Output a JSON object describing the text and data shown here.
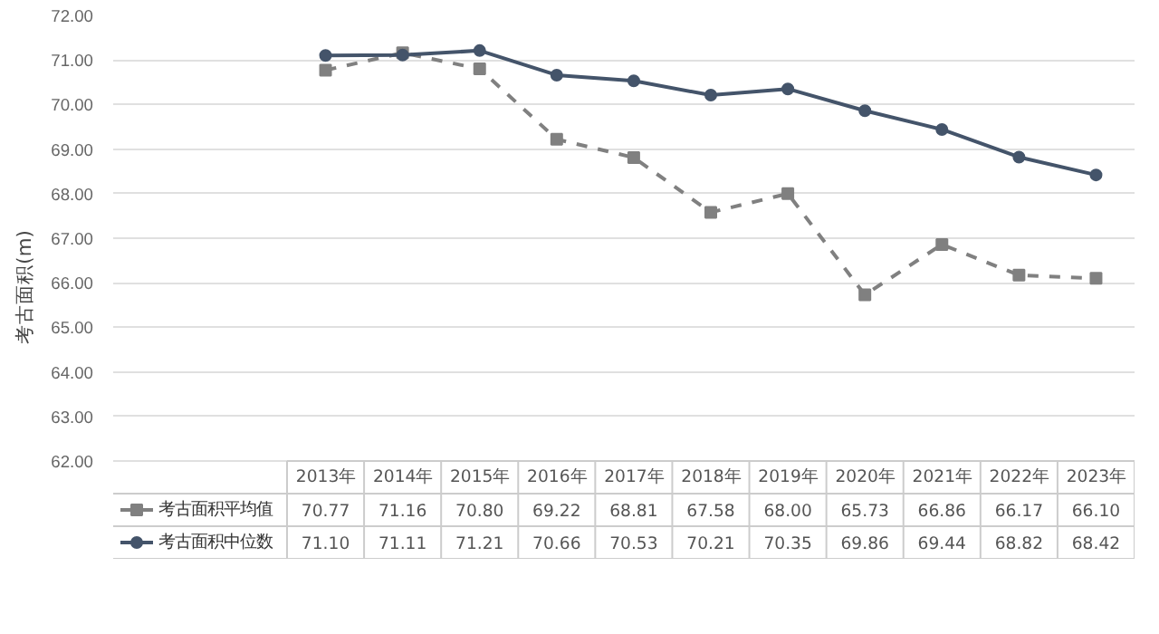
{
  "chart_data": {
    "type": "line",
    "ylabel": "考古面积(m)",
    "categories": [
      "2013年",
      "2014年",
      "2015年",
      "2016年",
      "2017年",
      "2018年",
      "2019年",
      "2020年",
      "2021年",
      "2022年",
      "2023年"
    ],
    "series": [
      {
        "name": "考古面积平均值",
        "color": "#808080",
        "line_style": "dashed",
        "marker": "square",
        "values": [
          70.77,
          71.16,
          70.8,
          69.22,
          68.81,
          67.58,
          68.0,
          65.73,
          66.86,
          66.17,
          66.1
        ],
        "value_labels": [
          "70.77",
          "71.16",
          "70.80",
          "69.22",
          "68.81",
          "67.58",
          "68.00",
          "65.73",
          "66.86",
          "66.17",
          "66.10"
        ]
      },
      {
        "name": "考古面积中位数",
        "color": "#44546a",
        "line_style": "solid",
        "marker": "circle",
        "values": [
          71.1,
          71.11,
          71.21,
          70.66,
          70.53,
          70.21,
          70.35,
          69.86,
          69.44,
          68.82,
          68.42
        ],
        "value_labels": [
          "71.10",
          "71.11",
          "71.21",
          "70.66",
          "70.53",
          "70.21",
          "70.35",
          "69.86",
          "69.44",
          "68.82",
          "68.42"
        ]
      }
    ],
    "ylim": [
      62,
      72
    ],
    "yticks": [
      {
        "value": 62,
        "label": "62.00"
      },
      {
        "value": 63,
        "label": "63.00"
      },
      {
        "value": 64,
        "label": "64.00"
      },
      {
        "value": 65,
        "label": "65.00"
      },
      {
        "value": 66,
        "label": "66.00"
      },
      {
        "value": 67,
        "label": "67.00"
      },
      {
        "value": 68,
        "label": "68.00"
      },
      {
        "value": 69,
        "label": "69.00"
      },
      {
        "value": 70,
        "label": "70.00"
      },
      {
        "value": 71,
        "label": "71.00"
      },
      {
        "value": 72,
        "label": "72.00"
      }
    ],
    "grid": "y",
    "legend": "bottom",
    "tick_labels": "y"
  }
}
